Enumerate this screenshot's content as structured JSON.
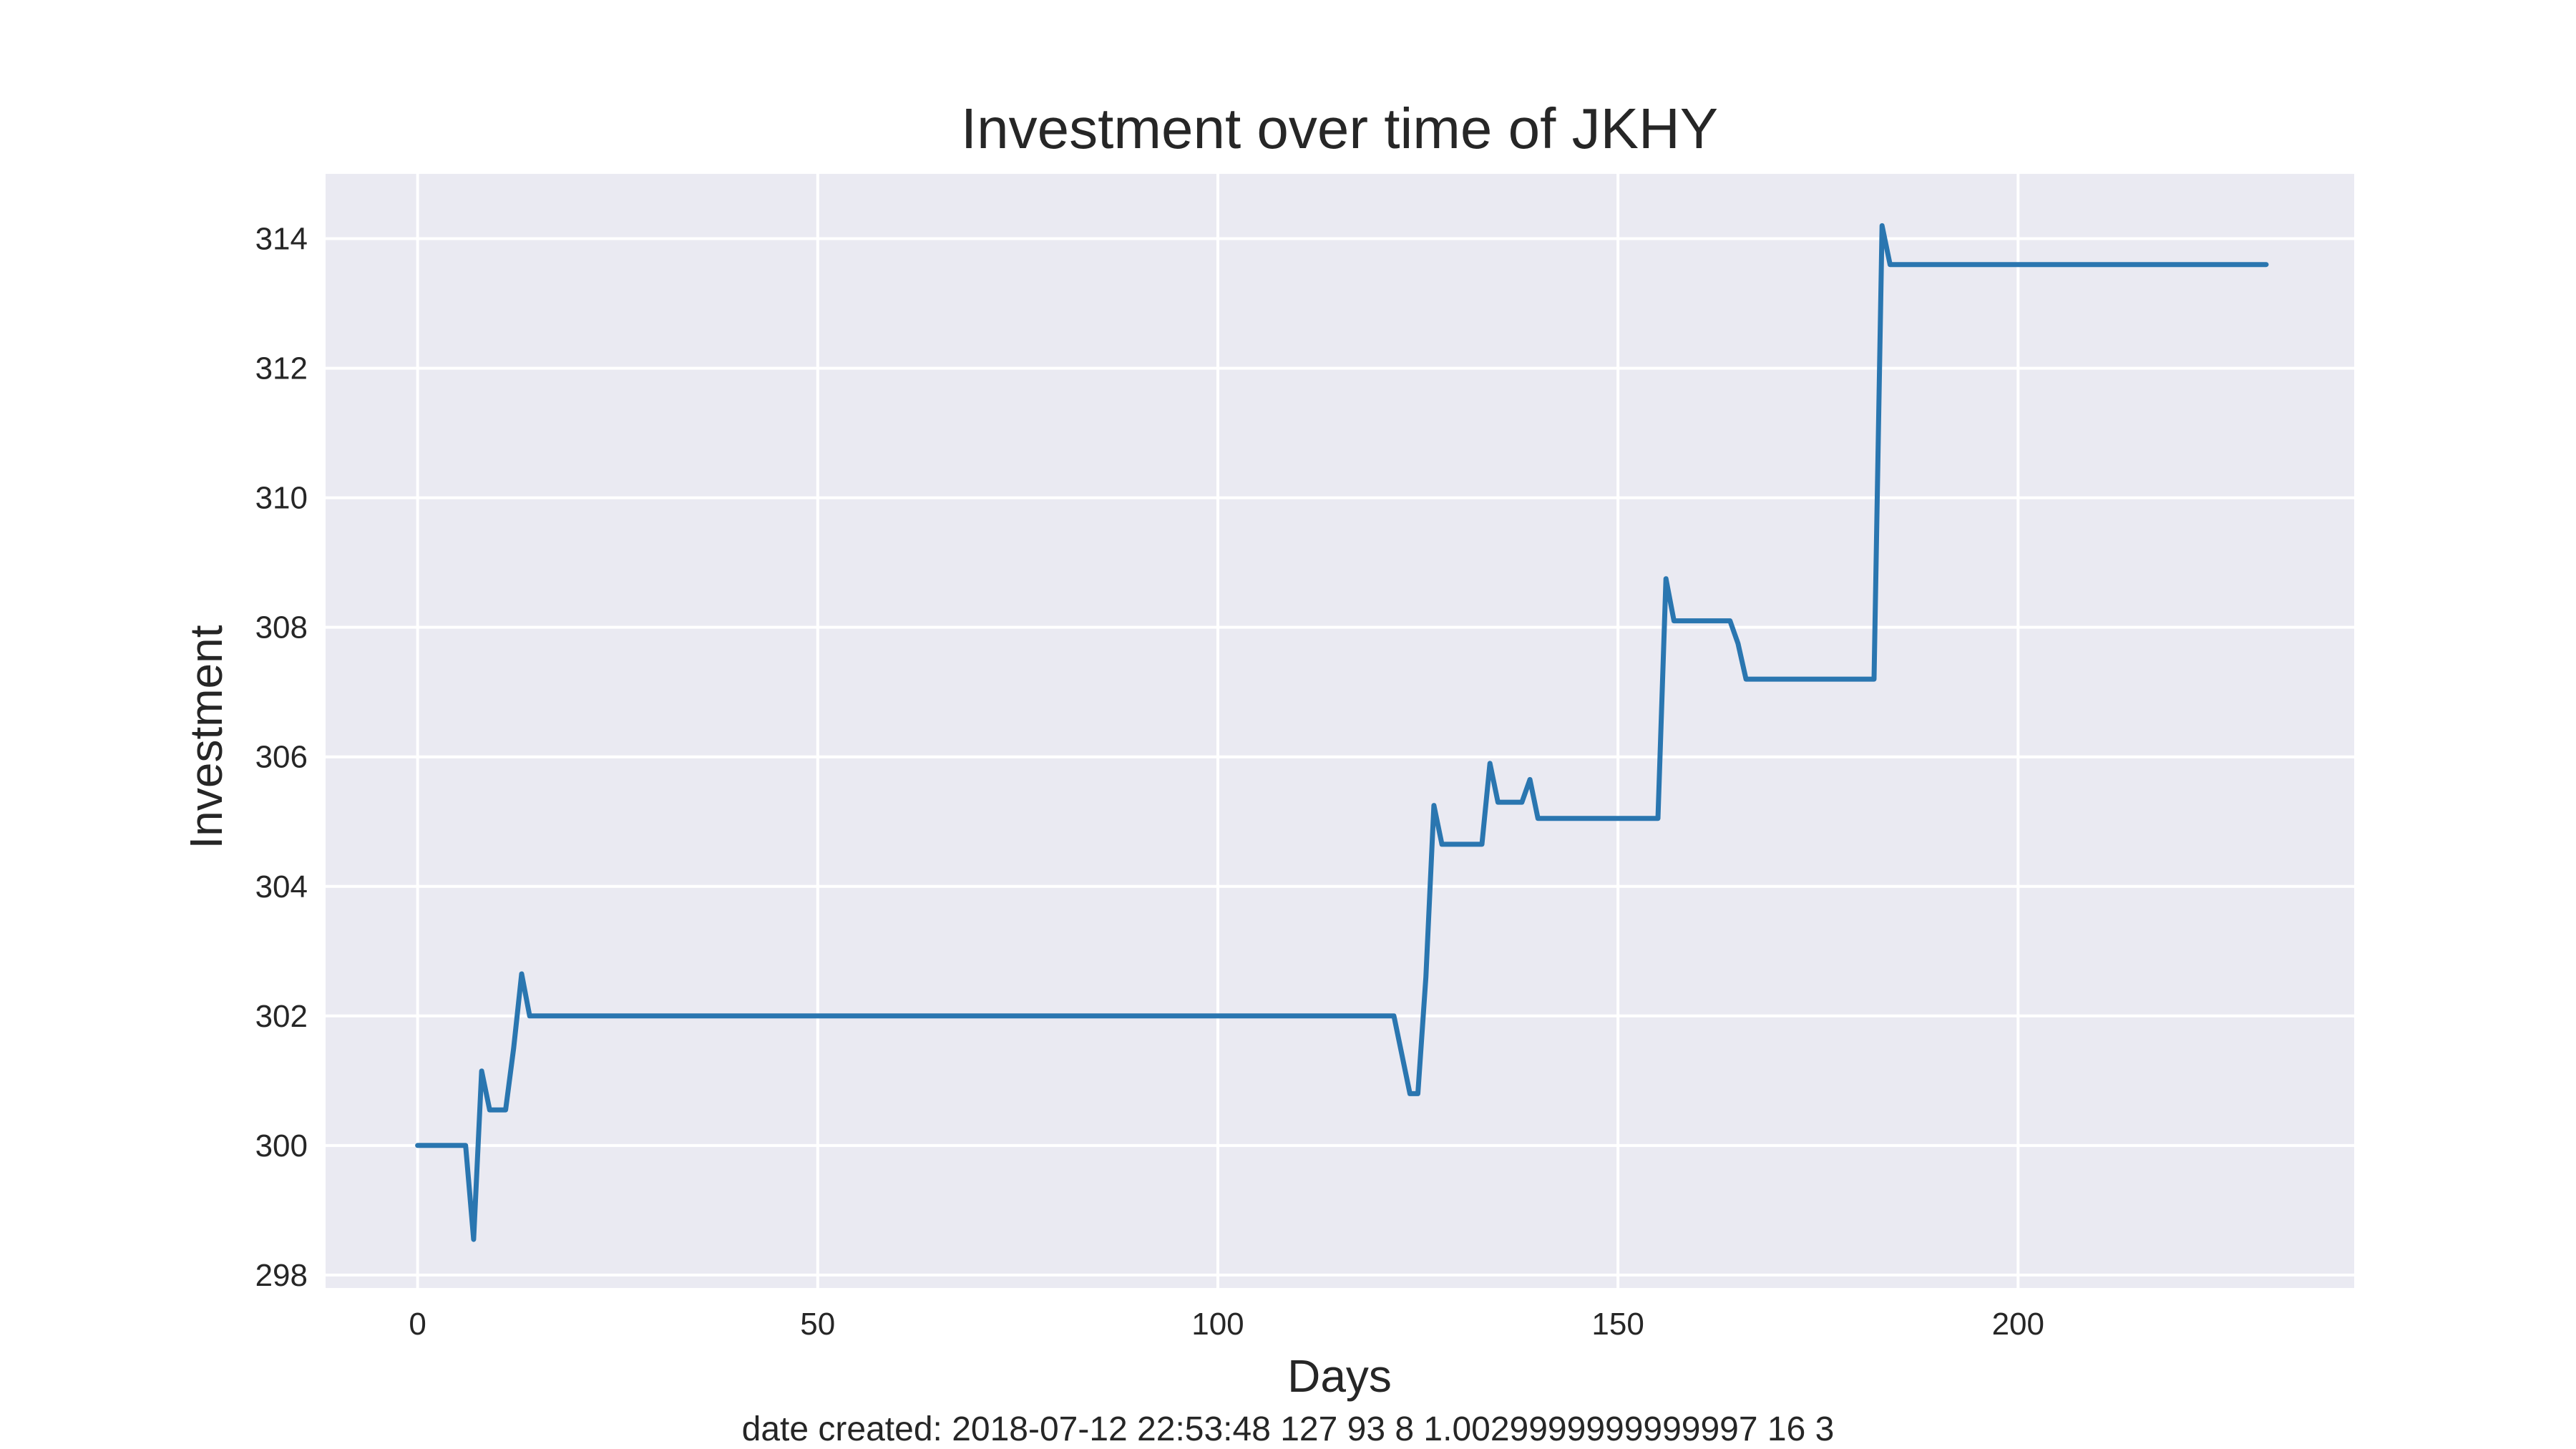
{
  "chart_data": {
    "type": "line",
    "title": "Investment over time of JKHY",
    "xlabel": "Days",
    "ylabel": "Investment",
    "footer": "date created: 2018-07-12 22:53:48 127 93 8 1.0029999999999997 16 3",
    "xlim": [
      -11.5,
      242
    ],
    "ylim": [
      297.8,
      315.0
    ],
    "x_ticks": [
      0,
      50,
      100,
      150,
      200
    ],
    "y_ticks": [
      298,
      300,
      302,
      304,
      306,
      308,
      310,
      312,
      314
    ],
    "grid": true,
    "legend": "none",
    "colors": {
      "background": "#eaeaf2",
      "grid": "#ffffff",
      "line": "#2a76b0",
      "text": "#262626"
    },
    "series": [
      {
        "points": [
          [
            0,
            300.0
          ],
          [
            6,
            300.0
          ],
          [
            7,
            298.55
          ],
          [
            8,
            301.15
          ],
          [
            9,
            300.55
          ],
          [
            11,
            300.55
          ],
          [
            12,
            301.5
          ],
          [
            13,
            302.65
          ],
          [
            14,
            302.0
          ],
          [
            122,
            302.0
          ],
          [
            124,
            300.8
          ],
          [
            125,
            300.8
          ],
          [
            126,
            302.6
          ],
          [
            127,
            305.25
          ],
          [
            128,
            304.65
          ],
          [
            133,
            304.65
          ],
          [
            134,
            305.9
          ],
          [
            135,
            305.3
          ],
          [
            138,
            305.3
          ],
          [
            139,
            305.65
          ],
          [
            140,
            305.05
          ],
          [
            155,
            305.05
          ],
          [
            156,
            308.75
          ],
          [
            157,
            308.1
          ],
          [
            164,
            308.1
          ],
          [
            165,
            307.75
          ],
          [
            166,
            307.2
          ],
          [
            182,
            307.2
          ],
          [
            183,
            314.2
          ],
          [
            184,
            313.6
          ],
          [
            231,
            313.6
          ]
        ]
      }
    ]
  }
}
